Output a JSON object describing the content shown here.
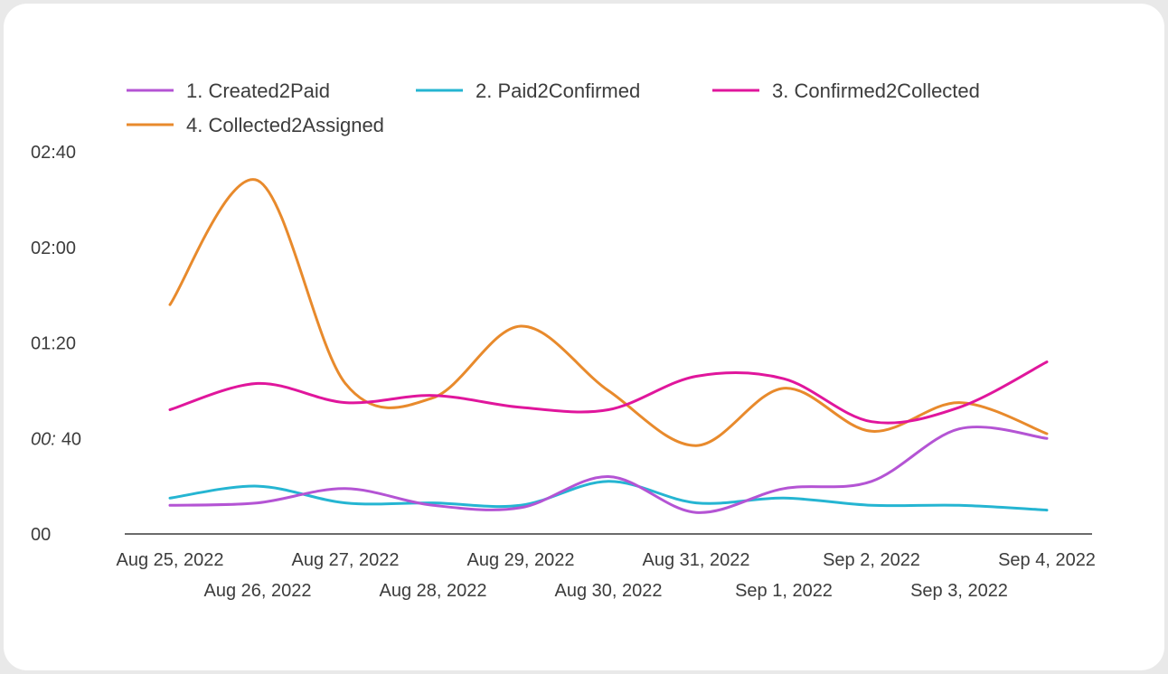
{
  "chart_data": {
    "type": "line",
    "smooth": true,
    "x": [
      "Aug 25, 2022",
      "Aug 26, 2022",
      "Aug 27, 2022",
      "Aug 28, 2022",
      "Aug 29, 2022",
      "Aug 30, 2022",
      "Aug 31, 2022",
      "Sep 1, 2022",
      "Sep 2, 2022",
      "Sep 3, 2022",
      "Sep 4, 2022"
    ],
    "y_unit": "minutes",
    "ylim": [
      0,
      160
    ],
    "y_ticks": [
      0,
      40,
      80,
      120,
      160
    ],
    "y_tick_labels": [
      "00",
      "00: 40",
      "01:20",
      "02:00",
      "02:40"
    ],
    "grid": false,
    "legend_position": "top",
    "series": [
      {
        "name": "1. Created2Paid",
        "color": "#b454d4",
        "values": [
          12,
          13,
          19,
          12,
          11,
          24,
          9,
          19,
          22,
          44,
          40
        ]
      },
      {
        "name": "2. Paid2Confirmed",
        "color": "#25b5d2",
        "values": [
          15,
          20,
          13,
          13,
          12,
          22,
          13,
          15,
          12,
          12,
          10
        ]
      },
      {
        "name": "3. Confirmed2Collected",
        "color": "#e0169c",
        "values": [
          52,
          63,
          55,
          58,
          53,
          52,
          66,
          65,
          47,
          53,
          72
        ]
      },
      {
        "name": "4. Collected2Assigned",
        "color": "#e88a2c",
        "values": [
          96,
          148,
          63,
          57,
          87,
          60,
          37,
          61,
          43,
          55,
          42
        ]
      }
    ]
  }
}
